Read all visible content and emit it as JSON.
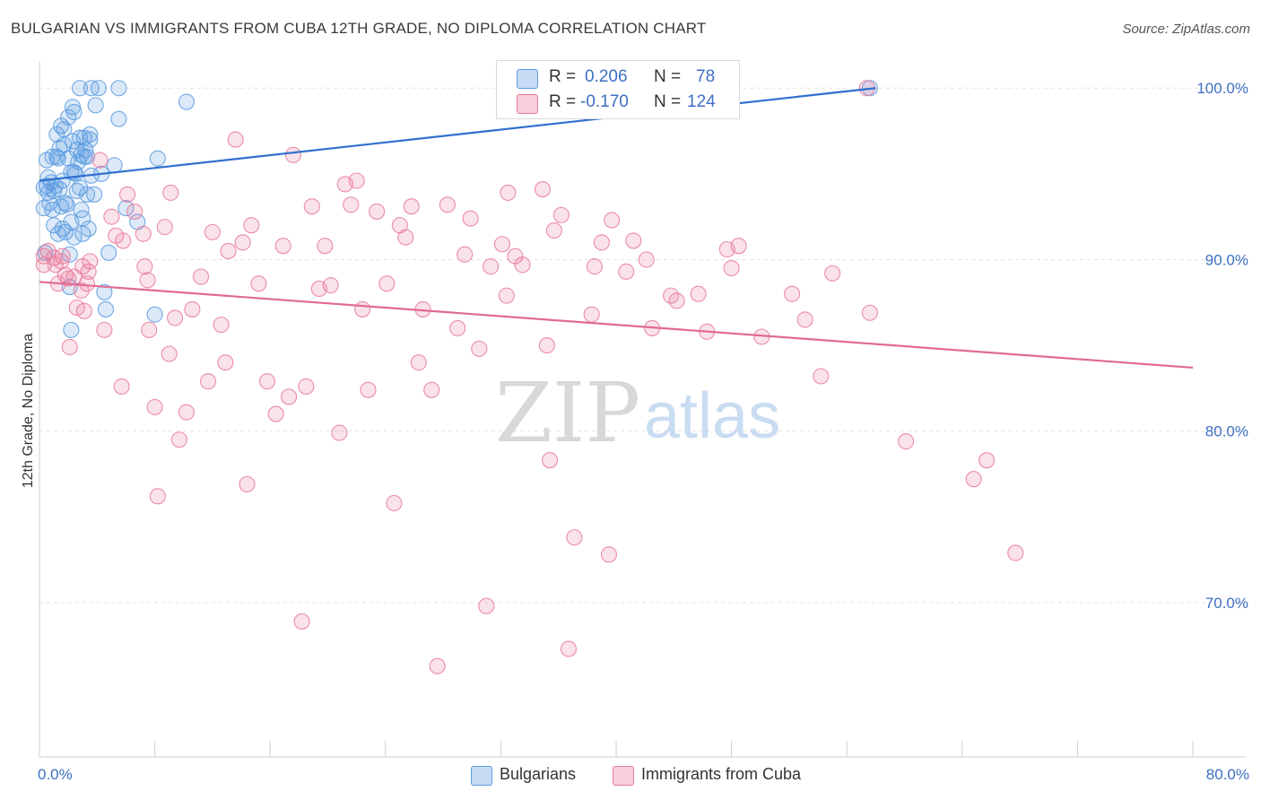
{
  "header": {
    "title": "BULGARIAN VS IMMIGRANTS FROM CUBA 12TH GRADE, NO DIPLOMA CORRELATION CHART",
    "source": "Source: ZipAtlas.com"
  },
  "watermark": {
    "zip": "ZIP",
    "atlas": "atlas"
  },
  "legend": {
    "r_label": "R =",
    "n_label": "N =",
    "rows": [
      {
        "r": "0.206",
        "n": "78",
        "color": "#5b9be0"
      },
      {
        "r": "-0.170",
        "n": "124",
        "color": "#e8799c"
      }
    ]
  },
  "bottom_legend": [
    {
      "label": "Bulgarians",
      "color": "#5b9be0"
    },
    {
      "label": "Immigrants from Cuba",
      "color": "#e8799c"
    }
  ],
  "chart_data": {
    "type": "scatter",
    "title": "BULGARIAN VS IMMIGRANTS FROM CUBA 12TH GRADE, NO DIPLOMA CORRELATION CHART",
    "xlabel": "",
    "ylabel": "12th Grade, No Diploma",
    "xlim": [
      0,
      80
    ],
    "ylim": [
      61,
      102
    ],
    "x_tick_labels": [
      "0.0%",
      "80.0%"
    ],
    "y_ticks": [
      70,
      80,
      90,
      100
    ],
    "y_tick_labels": [
      "70.0%",
      "80.0%",
      "90.0%",
      "100.0%"
    ],
    "grid": true,
    "legend_position": "top-center",
    "series": [
      {
        "name": "Bulgarians",
        "color": "#5b9be0",
        "trend": {
          "x": [
            0,
            58
          ],
          "y": [
            94.6,
            100.0
          ]
        },
        "points": [
          [
            0.3,
            94.2
          ],
          [
            0.3,
            93.0
          ],
          [
            0.5,
            95.8
          ],
          [
            0.6,
            94.8
          ],
          [
            0.6,
            93.9
          ],
          [
            0.8,
            94.5
          ],
          [
            0.9,
            92.9
          ],
          [
            1.0,
            94.0
          ],
          [
            1.0,
            92.0
          ],
          [
            1.2,
            96.0
          ],
          [
            1.2,
            97.3
          ],
          [
            1.3,
            95.9
          ],
          [
            1.4,
            96.5
          ],
          [
            1.4,
            94.1
          ],
          [
            1.5,
            97.8
          ],
          [
            1.6,
            91.8
          ],
          [
            1.7,
            97.6
          ],
          [
            1.8,
            93.3
          ],
          [
            1.8,
            91.6
          ],
          [
            2.0,
            95.9
          ],
          [
            2.0,
            98.3
          ],
          [
            2.1,
            90.3
          ],
          [
            2.1,
            88.4
          ],
          [
            2.2,
            92.2
          ],
          [
            2.2,
            85.9
          ],
          [
            2.3,
            98.9
          ],
          [
            2.3,
            96.9
          ],
          [
            2.4,
            95.1
          ],
          [
            2.4,
            98.6
          ],
          [
            2.5,
            95.0
          ],
          [
            2.6,
            96.4
          ],
          [
            2.7,
            95.7
          ],
          [
            2.8,
            94.2
          ],
          [
            2.8,
            100.0
          ],
          [
            2.9,
            96.1
          ],
          [
            2.9,
            92.9
          ],
          [
            3.0,
            91.5
          ],
          [
            3.1,
            96.0
          ],
          [
            3.1,
            97.1
          ],
          [
            3.2,
            96.4
          ],
          [
            3.3,
            96.0
          ],
          [
            3.3,
            93.8
          ],
          [
            3.4,
            91.8
          ],
          [
            3.5,
            97.0
          ],
          [
            3.5,
            97.3
          ],
          [
            3.6,
            100.0
          ],
          [
            3.8,
            93.8
          ],
          [
            3.9,
            99.0
          ],
          [
            4.1,
            100.0
          ],
          [
            4.3,
            95.0
          ],
          [
            4.5,
            88.1
          ],
          [
            4.6,
            87.1
          ],
          [
            4.8,
            90.4
          ],
          [
            5.2,
            95.5
          ],
          [
            5.5,
            98.2
          ],
          [
            5.5,
            100.0
          ],
          [
            6.0,
            93.0
          ],
          [
            6.8,
            92.2
          ],
          [
            8.0,
            86.8
          ],
          [
            8.2,
            95.9
          ],
          [
            10.2,
            99.2
          ],
          [
            57.6,
            100.0
          ],
          [
            0.4,
            90.4
          ],
          [
            0.7,
            93.3
          ],
          [
            1.1,
            94.3
          ],
          [
            1.5,
            93.1
          ],
          [
            1.9,
            93.2
          ],
          [
            2.2,
            95.1
          ],
          [
            2.6,
            94.0
          ],
          [
            3.0,
            92.4
          ],
          [
            0.5,
            94.3
          ],
          [
            1.3,
            91.5
          ],
          [
            1.7,
            96.7
          ],
          [
            2.4,
            91.3
          ],
          [
            2.8,
            97.1
          ],
          [
            3.6,
            94.9
          ],
          [
            0.9,
            96.0
          ],
          [
            1.6,
            94.6
          ]
        ]
      },
      {
        "name": "Immigrants from Cuba",
        "color": "#e8799c",
        "trend": {
          "x": [
            0,
            80
          ],
          "y": [
            88.7,
            83.7
          ]
        },
        "points": [
          [
            0.3,
            90.2
          ],
          [
            0.3,
            89.7
          ],
          [
            0.6,
            90.5
          ],
          [
            1.0,
            90.1
          ],
          [
            1.1,
            89.7
          ],
          [
            1.3,
            88.6
          ],
          [
            1.5,
            89.9
          ],
          [
            1.6,
            90.2
          ],
          [
            1.8,
            89.1
          ],
          [
            2.0,
            88.9
          ],
          [
            2.1,
            84.9
          ],
          [
            2.4,
            89.0
          ],
          [
            2.6,
            87.2
          ],
          [
            2.9,
            88.2
          ],
          [
            3.0,
            89.6
          ],
          [
            3.1,
            87.0
          ],
          [
            3.4,
            89.3
          ],
          [
            3.5,
            89.9
          ],
          [
            4.2,
            95.8
          ],
          [
            4.5,
            85.9
          ],
          [
            5.0,
            92.5
          ],
          [
            5.3,
            91.4
          ],
          [
            5.7,
            82.6
          ],
          [
            6.1,
            93.8
          ],
          [
            6.6,
            92.8
          ],
          [
            7.2,
            91.5
          ],
          [
            7.3,
            89.6
          ],
          [
            7.6,
            85.9
          ],
          [
            8.0,
            81.4
          ],
          [
            8.2,
            76.2
          ],
          [
            8.7,
            91.9
          ],
          [
            9.0,
            84.5
          ],
          [
            9.1,
            93.9
          ],
          [
            9.4,
            86.6
          ],
          [
            9.7,
            79.5
          ],
          [
            10.2,
            81.1
          ],
          [
            10.6,
            87.1
          ],
          [
            11.2,
            89.0
          ],
          [
            11.7,
            82.9
          ],
          [
            12.0,
            91.6
          ],
          [
            12.6,
            86.2
          ],
          [
            12.9,
            84.0
          ],
          [
            13.6,
            97.0
          ],
          [
            14.1,
            91.0
          ],
          [
            14.4,
            76.9
          ],
          [
            14.7,
            92.0
          ],
          [
            15.2,
            88.6
          ],
          [
            15.8,
            82.9
          ],
          [
            16.4,
            81.0
          ],
          [
            16.9,
            90.8
          ],
          [
            17.3,
            82.0
          ],
          [
            17.6,
            96.1
          ],
          [
            18.2,
            68.9
          ],
          [
            18.5,
            82.6
          ],
          [
            18.9,
            93.1
          ],
          [
            19.4,
            88.3
          ],
          [
            19.8,
            90.8
          ],
          [
            20.2,
            88.5
          ],
          [
            20.8,
            79.9
          ],
          [
            21.2,
            94.4
          ],
          [
            21.6,
            93.2
          ],
          [
            22.0,
            94.6
          ],
          [
            22.4,
            87.1
          ],
          [
            22.8,
            82.4
          ],
          [
            23.4,
            92.8
          ],
          [
            24.1,
            88.6
          ],
          [
            24.6,
            75.8
          ],
          [
            25.0,
            92.0
          ],
          [
            25.4,
            91.3
          ],
          [
            25.8,
            93.1
          ],
          [
            26.3,
            84.0
          ],
          [
            26.6,
            87.1
          ],
          [
            27.2,
            82.4
          ],
          [
            27.6,
            66.3
          ],
          [
            28.3,
            93.2
          ],
          [
            29.0,
            86.0
          ],
          [
            29.5,
            90.3
          ],
          [
            29.9,
            92.4
          ],
          [
            30.5,
            84.8
          ],
          [
            31.0,
            69.8
          ],
          [
            31.3,
            89.6
          ],
          [
            32.1,
            90.9
          ],
          [
            32.4,
            87.9
          ],
          [
            32.5,
            93.9
          ],
          [
            33.0,
            90.2
          ],
          [
            33.5,
            89.7
          ],
          [
            34.9,
            94.1
          ],
          [
            35.2,
            85.0
          ],
          [
            35.4,
            78.3
          ],
          [
            35.7,
            91.7
          ],
          [
            36.2,
            92.6
          ],
          [
            36.7,
            67.3
          ],
          [
            37.1,
            73.8
          ],
          [
            38.3,
            86.8
          ],
          [
            38.5,
            89.6
          ],
          [
            39.0,
            91.0
          ],
          [
            39.5,
            72.8
          ],
          [
            39.7,
            92.3
          ],
          [
            40.7,
            89.3
          ],
          [
            41.2,
            91.1
          ],
          [
            42.1,
            90.0
          ],
          [
            42.5,
            86.0
          ],
          [
            43.8,
            87.9
          ],
          [
            44.2,
            87.6
          ],
          [
            45.7,
            88.0
          ],
          [
            46.3,
            85.8
          ],
          [
            47.7,
            90.6
          ],
          [
            48.0,
            89.5
          ],
          [
            48.5,
            90.8
          ],
          [
            50.1,
            85.5
          ],
          [
            52.2,
            88.0
          ],
          [
            53.1,
            86.5
          ],
          [
            54.2,
            83.2
          ],
          [
            55.0,
            89.2
          ],
          [
            57.4,
            100.0
          ],
          [
            57.6,
            86.9
          ],
          [
            60.1,
            79.4
          ],
          [
            64.8,
            77.2
          ],
          [
            65.7,
            78.3
          ],
          [
            67.7,
            72.9
          ],
          [
            3.3,
            88.6
          ],
          [
            5.8,
            91.1
          ],
          [
            7.5,
            88.8
          ],
          [
            13.1,
            90.5
          ]
        ]
      }
    ]
  }
}
